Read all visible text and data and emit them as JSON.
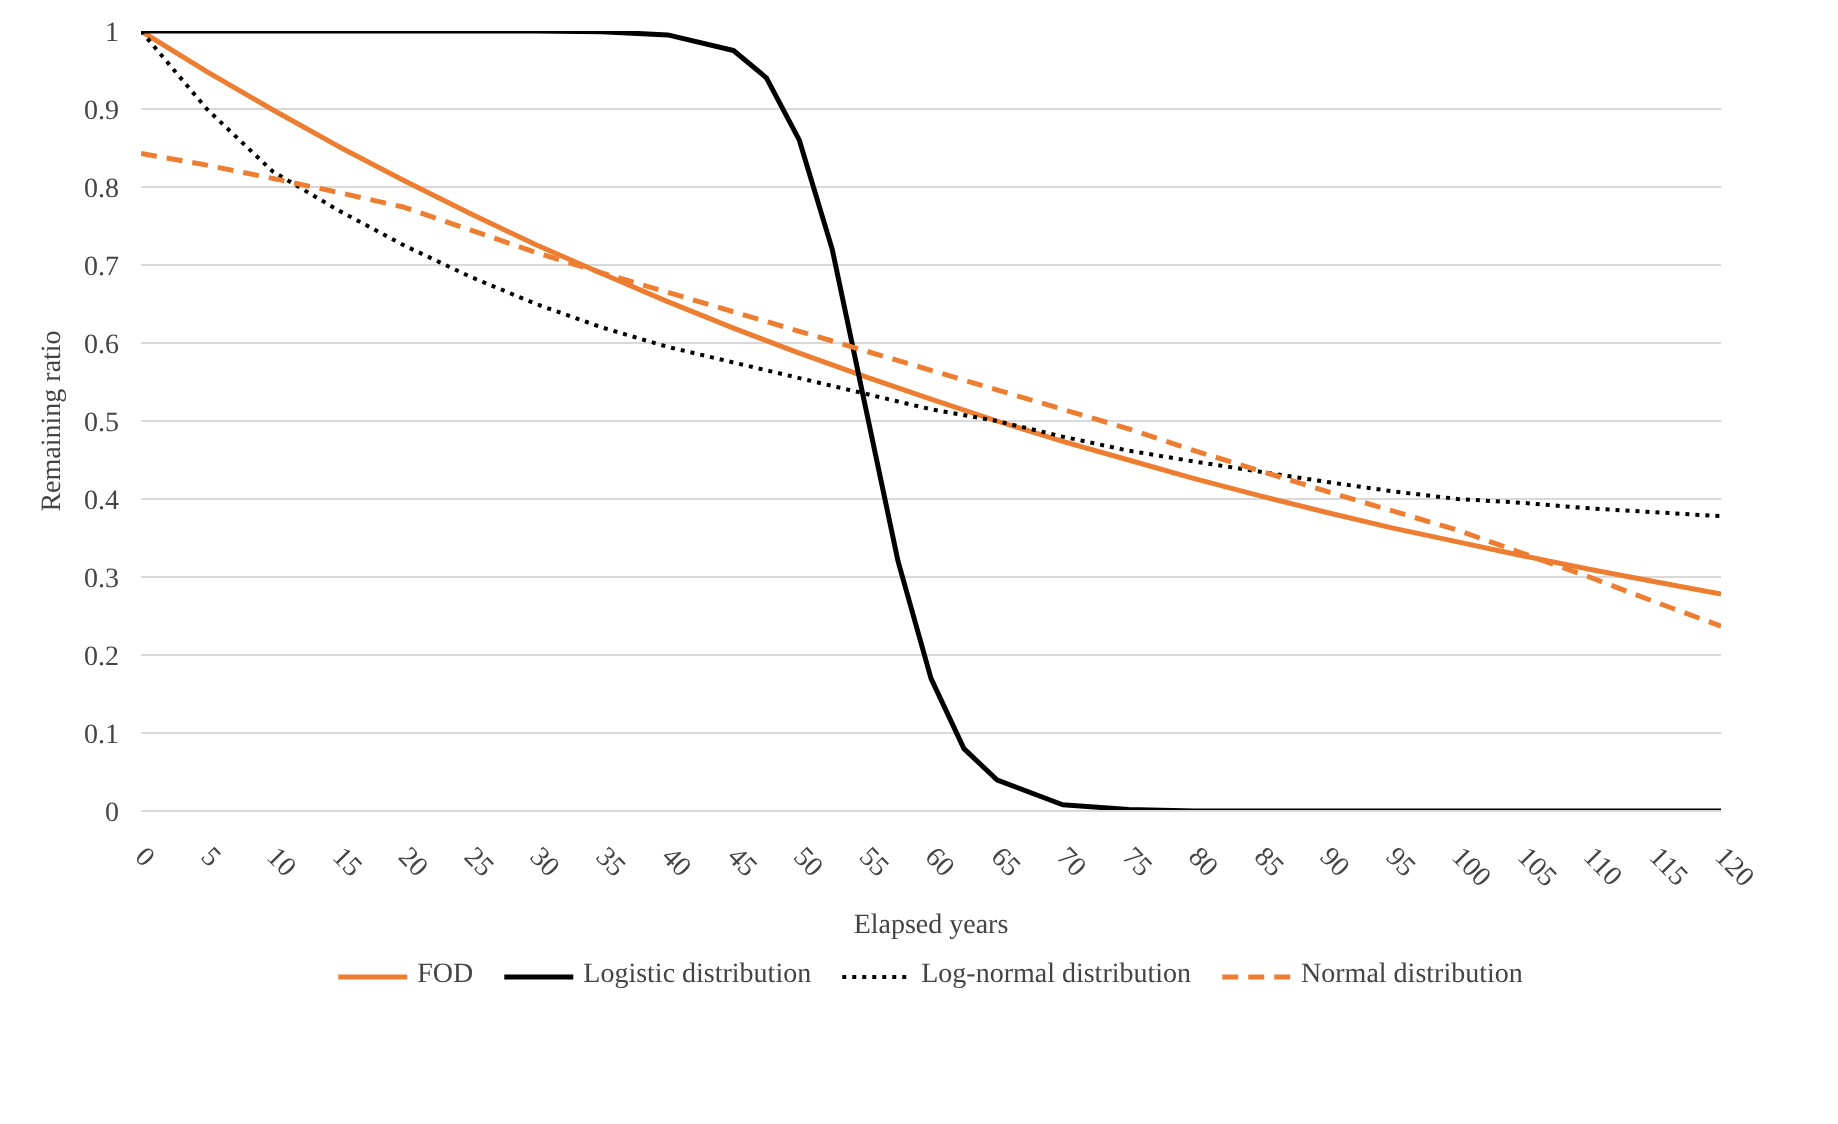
{
  "chart_data": {
    "type": "line",
    "xlabel": "Elapsed years",
    "ylabel": "Remaining ratio",
    "x": [
      0,
      5,
      10,
      15,
      20,
      25,
      30,
      35,
      40,
      45,
      50,
      55,
      60,
      65,
      70,
      75,
      80,
      85,
      90,
      95,
      100,
      105,
      110,
      115,
      120
    ],
    "xlim": [
      0,
      120
    ],
    "xticks": [
      0,
      5,
      10,
      15,
      20,
      25,
      30,
      35,
      40,
      45,
      50,
      55,
      60,
      65,
      70,
      75,
      80,
      85,
      90,
      95,
      100,
      105,
      110,
      115,
      120
    ],
    "ylim": [
      0,
      1
    ],
    "yticks": [
      0,
      0.1,
      0.2,
      0.3,
      0.4,
      0.5,
      0.6,
      0.7,
      0.8,
      0.9,
      1
    ],
    "grid": "y",
    "legend": "bottom",
    "series": [
      {
        "name": "FOD",
        "color": "#ed7d31",
        "line_style": "solid",
        "values": [
          1,
          0.948,
          0.899,
          0.852,
          0.808,
          0.766,
          0.726,
          0.689,
          0.653,
          0.619,
          0.587,
          0.557,
          0.528,
          0.5,
          0.474,
          0.45,
          0.426,
          0.404,
          0.383,
          0.363,
          0.345,
          0.327,
          0.31,
          0.294,
          0.278
        ]
      },
      {
        "name": "Logistic distribution",
        "color": "#000000",
        "line_style": "solid",
        "x": [
          0,
          10,
          20,
          30,
          35,
          40,
          45,
          47.5,
          50,
          52.5,
          55,
          57.5,
          60,
          62.5,
          65,
          70,
          75,
          80,
          90,
          100,
          110,
          120
        ],
        "values": [
          1,
          1,
          1,
          1,
          0.999,
          0.995,
          0.975,
          0.94,
          0.86,
          0.72,
          0.52,
          0.32,
          0.17,
          0.08,
          0.04,
          0.008,
          0.002,
          0,
          0,
          0,
          0,
          0
        ]
      },
      {
        "name": "Log-normal distribution",
        "color": "#000000",
        "line_style": "dotted",
        "values": [
          1,
          0.9,
          0.82,
          0.77,
          0.725,
          0.685,
          0.65,
          0.62,
          0.595,
          0.575,
          0.555,
          0.535,
          0.515,
          0.5,
          0.48,
          0.462,
          0.448,
          0.435,
          0.422,
          0.41,
          0.4,
          0.395,
          0.388,
          0.383,
          0.378
        ]
      },
      {
        "name": "Normal distribution",
        "color": "#ed7d31",
        "line_style": "dashed",
        "values": [
          0.843,
          0.828,
          0.811,
          0.793,
          0.774,
          0.745,
          0.716,
          0.69,
          0.665,
          0.64,
          0.615,
          0.59,
          0.565,
          0.54,
          0.515,
          0.49,
          0.462,
          0.436,
          0.41,
          0.385,
          0.36,
          0.33,
          0.3,
          0.268,
          0.237
        ]
      }
    ]
  }
}
